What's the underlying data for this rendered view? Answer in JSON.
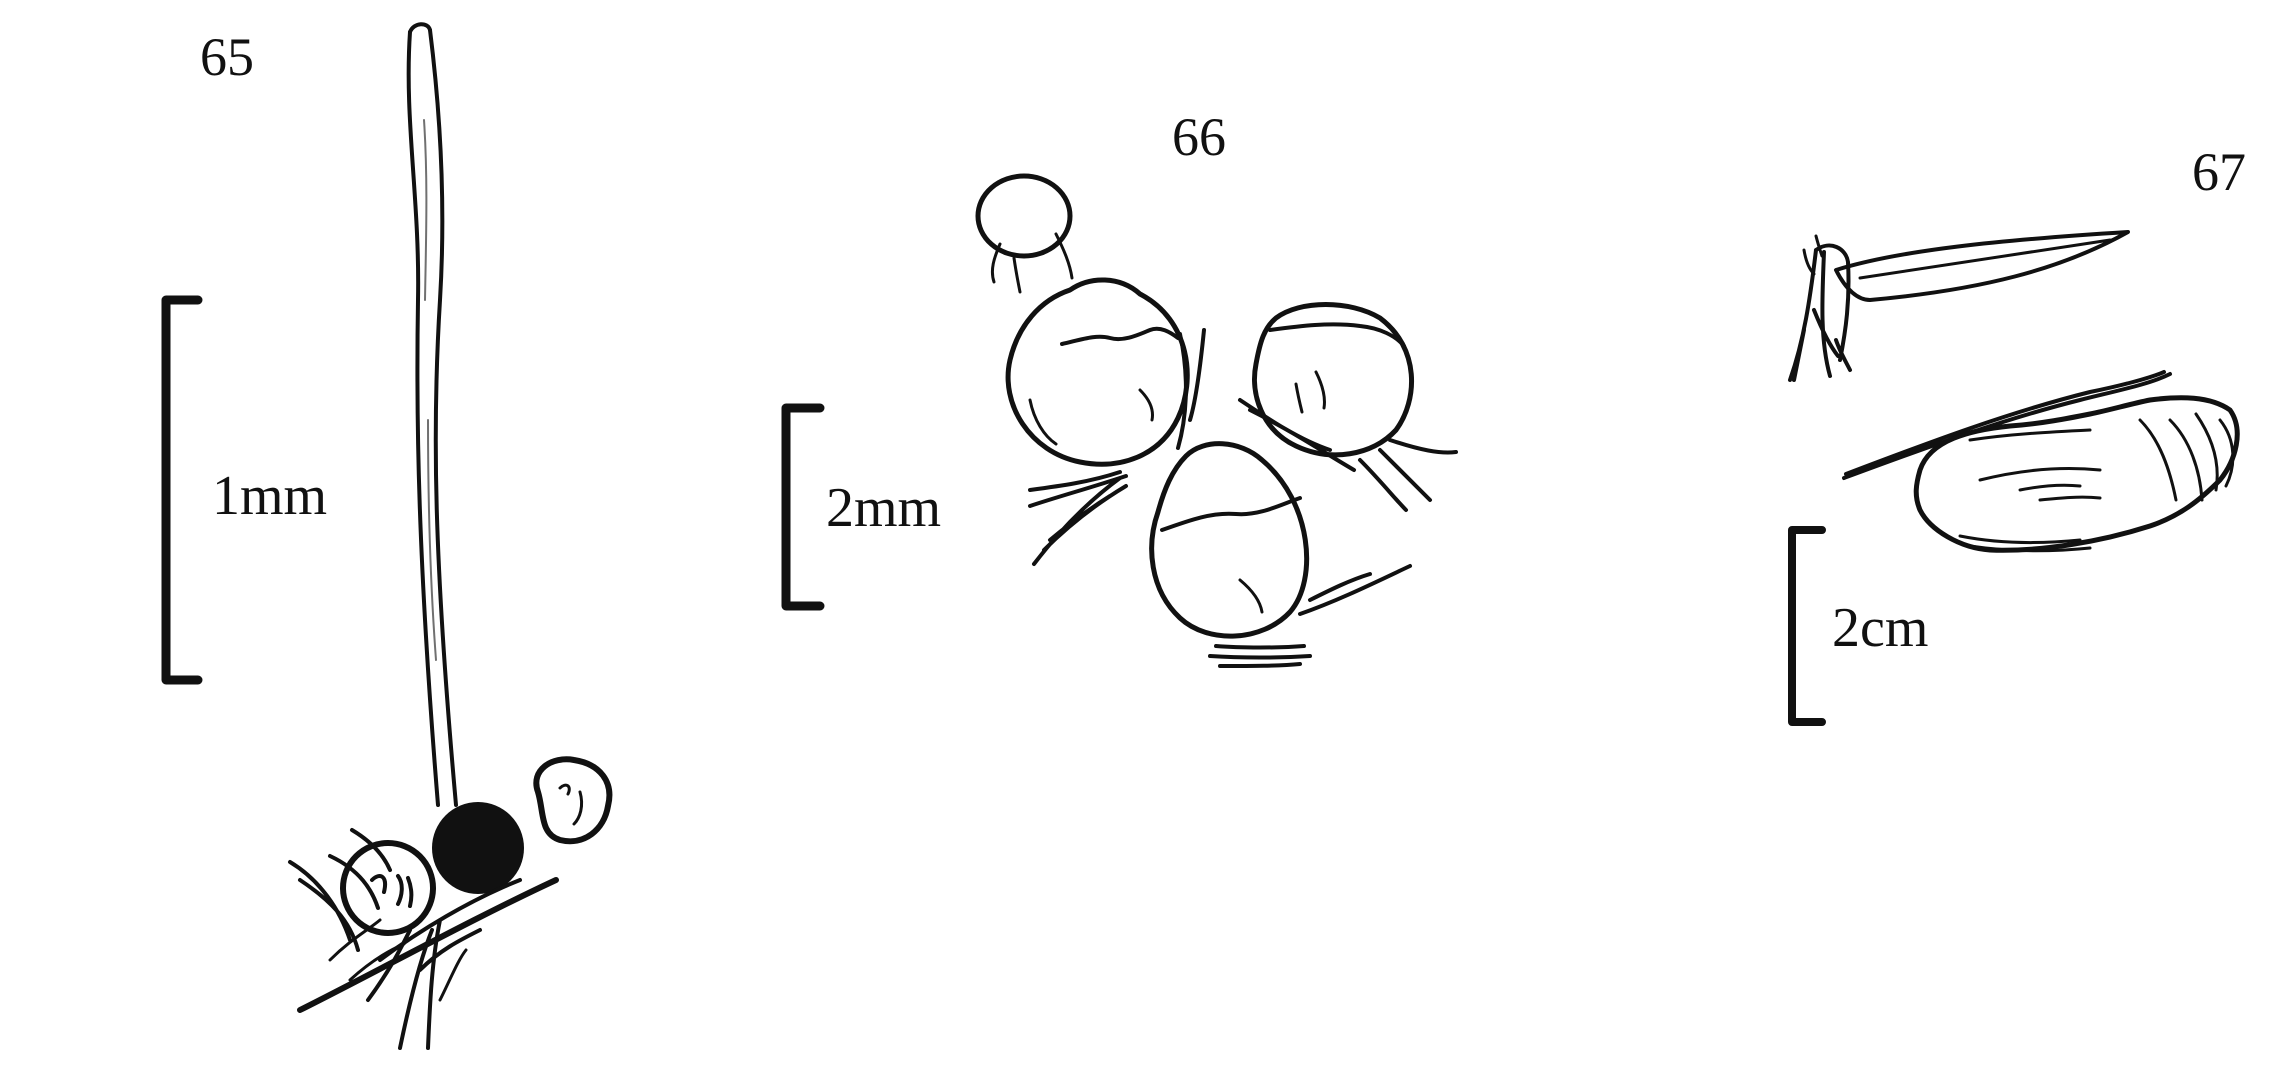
{
  "figures": [
    {
      "number": "65",
      "scale_label": "1mm"
    },
    {
      "number": "66",
      "scale_label": "2mm"
    },
    {
      "number": "67",
      "scale_label": "2cm"
    }
  ],
  "colors": {
    "ink": "#111111",
    "background": "#ffffff"
  }
}
